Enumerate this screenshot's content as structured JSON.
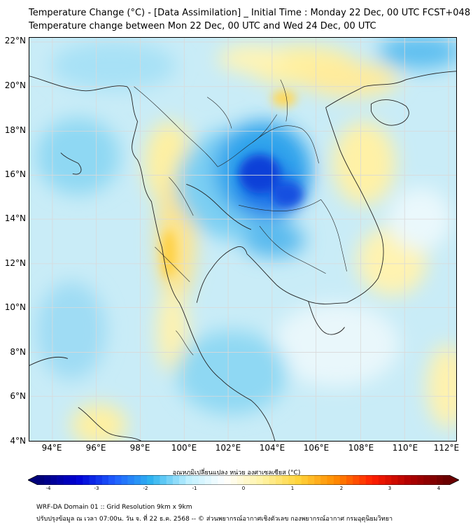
{
  "title_line1": "Temperature Change (°C) - [Data Assimilation] _ Initial Time : Monday 22 Dec, 00 UTC FCST+048",
  "title_line2": "Temperature change between Mon 22 Dec, 00 UTC and Wed 24 Dec, 00 UTC",
  "map": {
    "lat_labels": [
      "22°N",
      "20°N",
      "18°N",
      "16°N",
      "14°N",
      "12°N",
      "10°N",
      "8°N",
      "6°N",
      "4°N"
    ],
    "lon_labels": [
      "94°E",
      "96°E",
      "98°E",
      "100°E",
      "102°E",
      "104°E",
      "106°E",
      "108°E",
      "110°E",
      "112°E"
    ]
  },
  "colorbar": {
    "label": "อุณหภูมิเปลี่ยนแปลง หน่วย องศาเซลเซียส (°C)",
    "ticks": [
      "-4",
      "-3",
      "-2",
      "-1",
      "0",
      "1",
      "2",
      "3",
      "4"
    ],
    "min": -4,
    "max": 4,
    "colors": [
      "#00007a",
      "#0000d6",
      "#1f5fff",
      "#2fb5f0",
      "#bff0ff",
      "#ffffff",
      "#fff3a6",
      "#ffd43a",
      "#ff8a00",
      "#ff1e00",
      "#b00000",
      "#6b0000"
    ]
  },
  "footer_line1": "WRF-DA Domain 01 :: Grid Resolution 9km x 9km",
  "footer_line2": "ปรับปรุงข้อมูล ณ เวลา 07:00น. วัน จ. ที่ 22 ธ.ค. 2568 -- © ส่วนพยากรณ์อากาศเชิงตัวเลข กองพยากรณ์อากาศ กรมอุตุนิยมวิทยา"
}
